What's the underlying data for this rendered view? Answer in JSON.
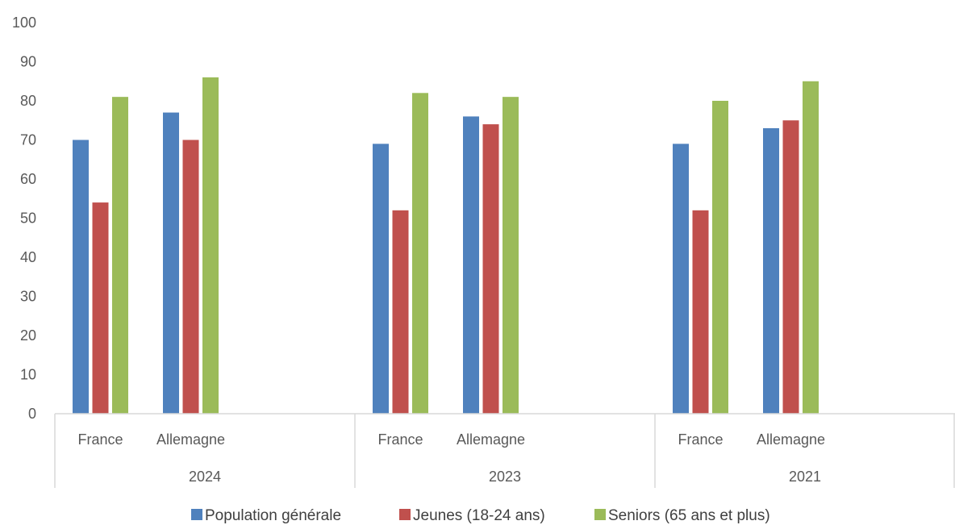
{
  "chart_data": {
    "type": "bar",
    "groups": [
      {
        "label": "2024",
        "categories": [
          "France",
          "Allemagne"
        ]
      },
      {
        "label": "2023",
        "categories": [
          "France",
          "Allemagne"
        ]
      },
      {
        "label": "2021",
        "categories": [
          "France",
          "Allemagne"
        ]
      }
    ],
    "series": [
      {
        "name": "Population générale",
        "color": "#4F81BD",
        "values": [
          70,
          77,
          69,
          76,
          69,
          73
        ]
      },
      {
        "name": "Jeunes (18-24 ans)",
        "color": "#C0504D",
        "values": [
          54,
          70,
          52,
          74,
          52,
          75
        ]
      },
      {
        "name": "Seniors (65 ans et plus)",
        "color": "#9BBB59",
        "values": [
          81,
          86,
          82,
          81,
          80,
          85
        ]
      }
    ],
    "ylim": [
      0,
      100
    ],
    "yticks": [
      0,
      10,
      20,
      30,
      40,
      50,
      60,
      70,
      80,
      90,
      100
    ],
    "grid": false,
    "legend": "bottom"
  }
}
